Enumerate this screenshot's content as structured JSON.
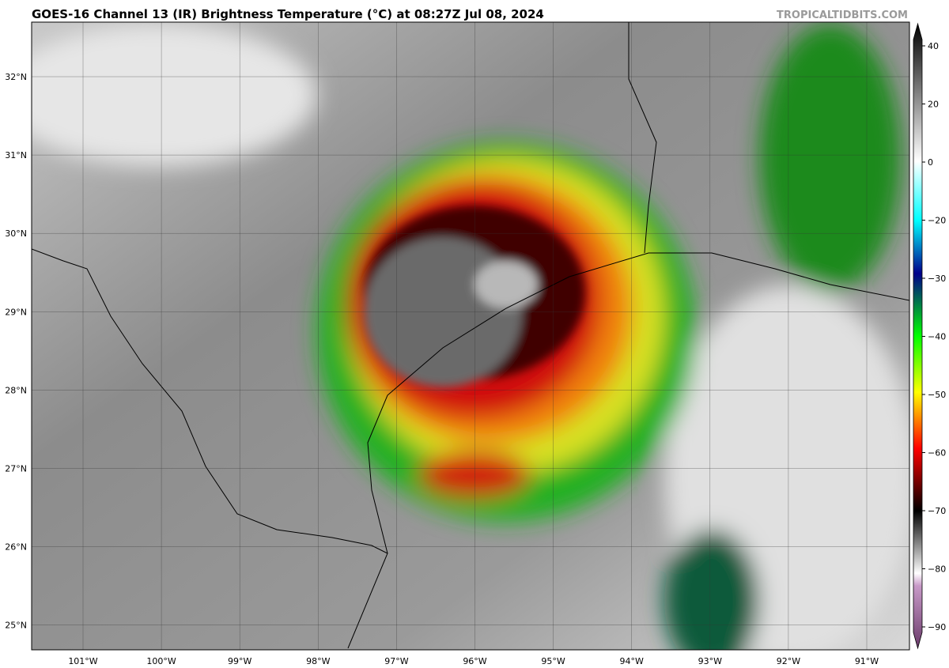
{
  "header": {
    "title": "GOES-16 Channel 13 (IR) Brightness Temperature (°C) at 08:27Z Jul 08, 2024",
    "credit": "TROPICALTIDBITS.COM"
  },
  "map": {
    "lat_labels": [
      "32°N",
      "31°N",
      "30°N",
      "29°N",
      "28°N",
      "27°N",
      "26°N",
      "25°N"
    ],
    "lon_labels": [
      "101°W",
      "100°W",
      "99°W",
      "98°W",
      "97°W",
      "96°W",
      "95°W",
      "94°W",
      "93°W",
      "92°W",
      "91°W"
    ]
  },
  "colorbar": {
    "ticks": [
      "40",
      "20",
      "0",
      "−20",
      "−30",
      "−40",
      "−50",
      "−60",
      "−70",
      "−80",
      "−90"
    ]
  }
}
